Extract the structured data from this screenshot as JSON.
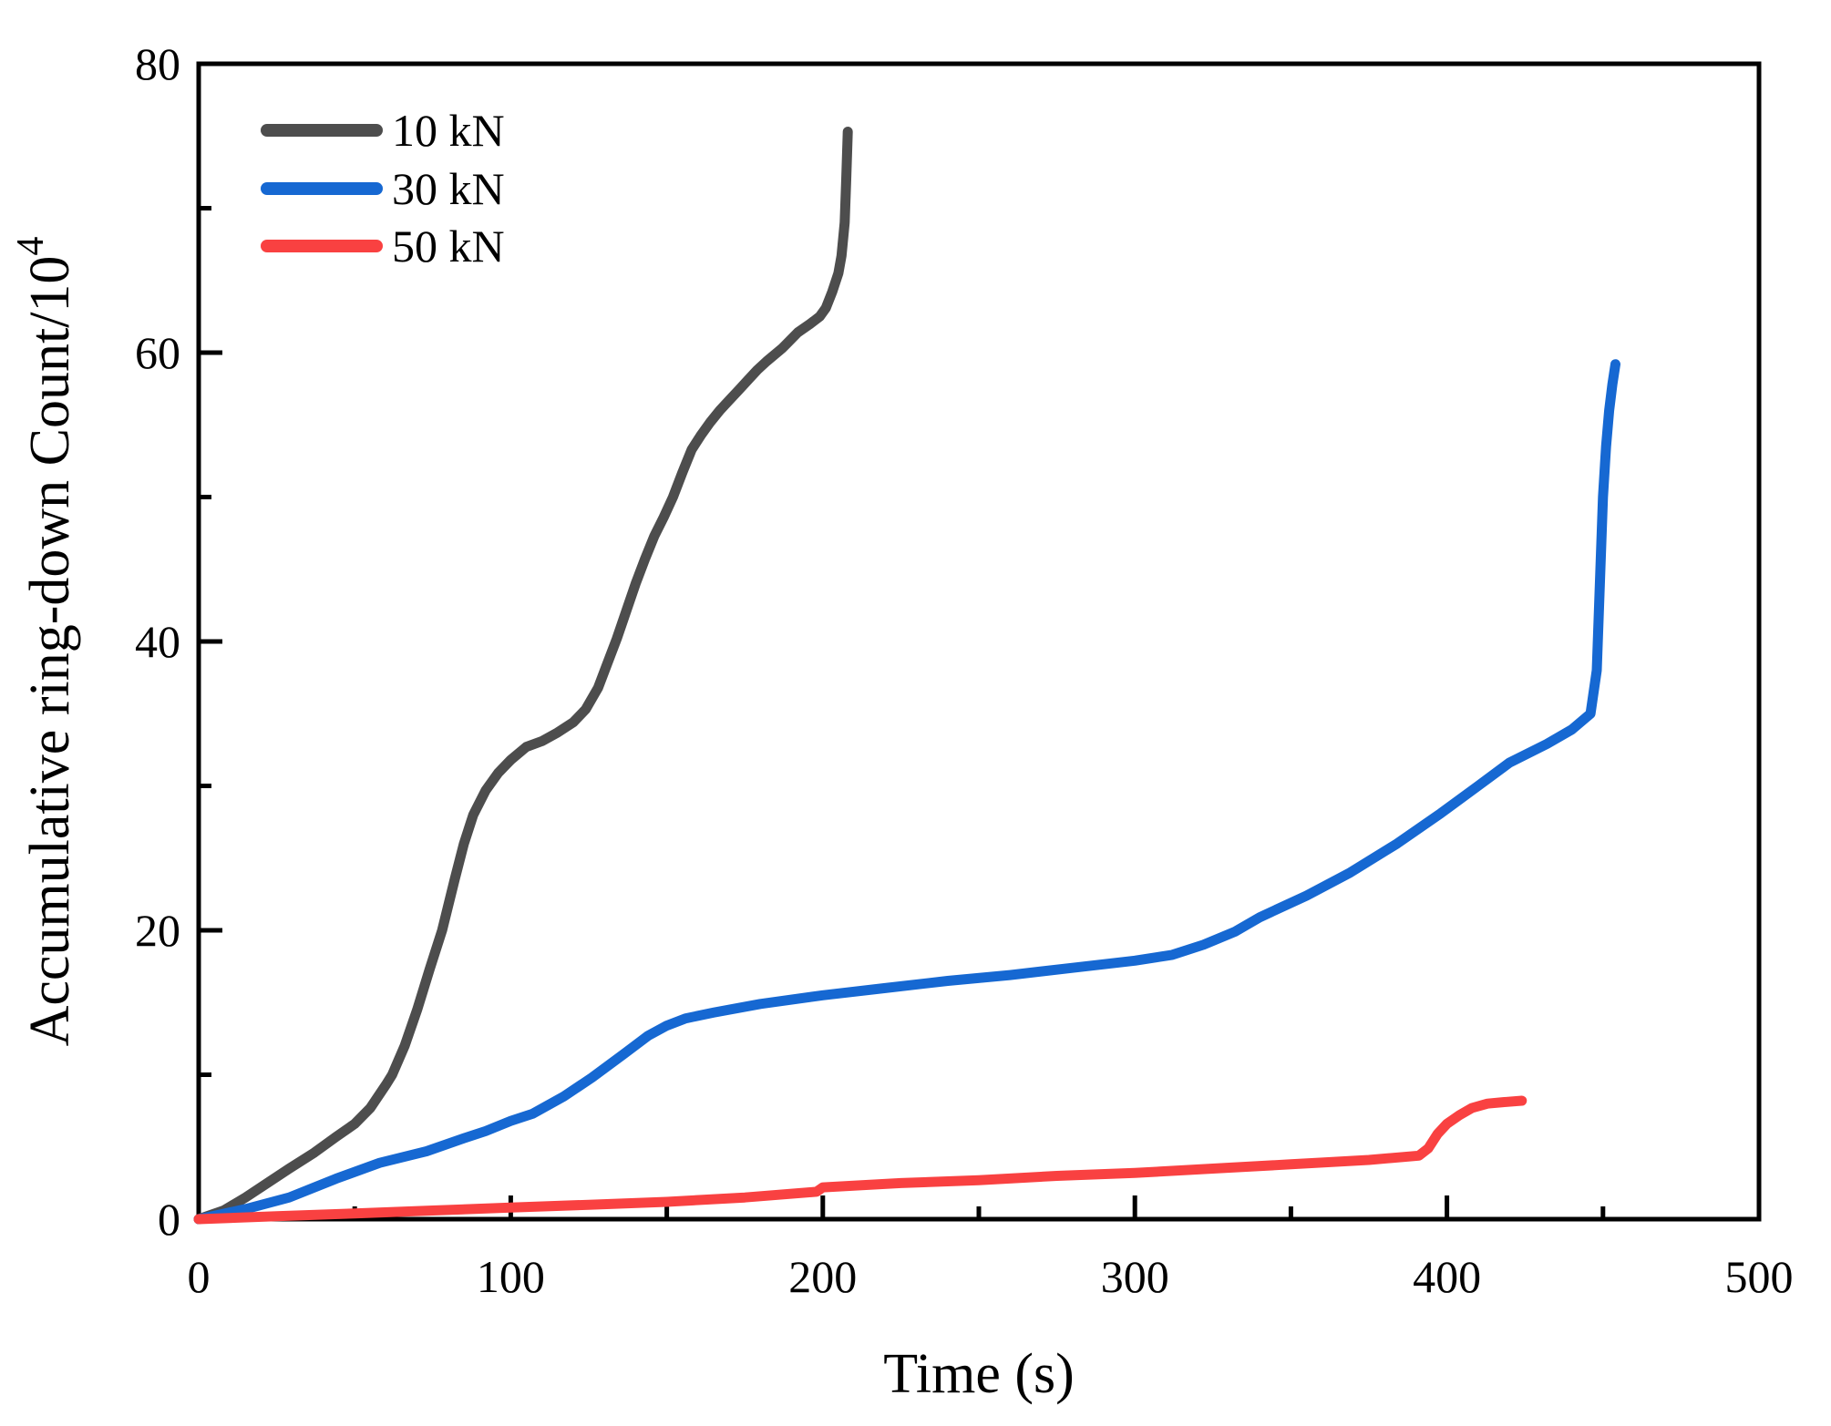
{
  "chart_data": {
    "type": "line",
    "title": "",
    "xlabel": "Time (s)",
    "ylabel_base": "Accumulative ring-down Count/10",
    "ylabel_exponent": "4",
    "xlim": [
      0,
      500
    ],
    "ylim": [
      0,
      80
    ],
    "grid": false,
    "legend_position": "top-left-inside",
    "frame": "full-box",
    "tick_direction": "in",
    "axis_color": "#000000",
    "x_axis": {
      "major_ticks": [
        0,
        100,
        200,
        300,
        400,
        500
      ],
      "tick_labels": [
        "0",
        "100",
        "200",
        "300",
        "400",
        "500"
      ],
      "minor_ticks": [
        50,
        150,
        250,
        350,
        450
      ]
    },
    "y_axis": {
      "major_ticks": [
        0,
        20,
        40,
        60,
        80
      ],
      "tick_labels": [
        "0",
        "20",
        "40",
        "60",
        "80"
      ],
      "minor_ticks": [
        10,
        30,
        50,
        70
      ]
    },
    "series": [
      {
        "name": "10 kN",
        "color": "#4d4d4d",
        "points": [
          [
            0,
            0
          ],
          [
            8,
            0.6
          ],
          [
            15,
            1.5
          ],
          [
            22,
            2.5
          ],
          [
            29,
            3.5
          ],
          [
            37,
            4.6
          ],
          [
            44,
            5.7
          ],
          [
            50,
            6.6
          ],
          [
            55,
            7.7
          ],
          [
            60,
            9.3
          ],
          [
            62,
            10
          ],
          [
            66,
            12
          ],
          [
            70,
            14.5
          ],
          [
            74,
            17.3
          ],
          [
            78,
            20
          ],
          [
            82,
            23.5
          ],
          [
            85,
            26
          ],
          [
            88,
            28
          ],
          [
            92,
            29.7
          ],
          [
            96,
            30.9
          ],
          [
            100,
            31.8
          ],
          [
            105,
            32.7
          ],
          [
            110,
            33.1
          ],
          [
            115,
            33.7
          ],
          [
            120,
            34.4
          ],
          [
            124,
            35.3
          ],
          [
            128,
            36.8
          ],
          [
            131,
            38.5
          ],
          [
            134,
            40.2
          ],
          [
            137,
            42.1
          ],
          [
            140,
            44
          ],
          [
            143,
            45.7
          ],
          [
            146,
            47.3
          ],
          [
            149,
            48.6
          ],
          [
            152,
            50
          ],
          [
            155,
            51.7
          ],
          [
            158,
            53.3
          ],
          [
            161,
            54.3
          ],
          [
            164,
            55.2
          ],
          [
            167,
            56
          ],
          [
            170,
            56.7
          ],
          [
            173,
            57.4
          ],
          [
            176,
            58.1
          ],
          [
            179,
            58.8
          ],
          [
            182,
            59.4
          ],
          [
            187,
            60.3
          ],
          [
            192,
            61.4
          ],
          [
            196,
            62
          ],
          [
            199,
            62.5
          ],
          [
            201,
            63.1
          ],
          [
            203,
            64.2
          ],
          [
            205,
            65.5
          ],
          [
            206,
            66.7
          ],
          [
            207,
            69
          ],
          [
            207.5,
            72
          ],
          [
            208,
            75.3
          ]
        ]
      },
      {
        "name": "30 kN",
        "color": "#1668d2",
        "points": [
          [
            0,
            0
          ],
          [
            15,
            0.7
          ],
          [
            29,
            1.5
          ],
          [
            44,
            2.8
          ],
          [
            58,
            3.9
          ],
          [
            73,
            4.7
          ],
          [
            85,
            5.6
          ],
          [
            92,
            6.1
          ],
          [
            100,
            6.8
          ],
          [
            107,
            7.3
          ],
          [
            117,
            8.5
          ],
          [
            126,
            9.8
          ],
          [
            136,
            11.4
          ],
          [
            144,
            12.7
          ],
          [
            150,
            13.4
          ],
          [
            156,
            13.9
          ],
          [
            165,
            14.3
          ],
          [
            180,
            14.9
          ],
          [
            200,
            15.5
          ],
          [
            220,
            16
          ],
          [
            240,
            16.5
          ],
          [
            260,
            16.9
          ],
          [
            280,
            17.4
          ],
          [
            300,
            17.9
          ],
          [
            312,
            18.3
          ],
          [
            322,
            19
          ],
          [
            332,
            19.9
          ],
          [
            340,
            20.9
          ],
          [
            355,
            22.4
          ],
          [
            369,
            24
          ],
          [
            384,
            26
          ],
          [
            398,
            28.1
          ],
          [
            410,
            30
          ],
          [
            420,
            31.6
          ],
          [
            432,
            32.9
          ],
          [
            440,
            33.9
          ],
          [
            446,
            35
          ],
          [
            448,
            38
          ],
          [
            449,
            44
          ],
          [
            450,
            50
          ],
          [
            451,
            53.5
          ],
          [
            452,
            56
          ],
          [
            453,
            57.8
          ],
          [
            454,
            59.2
          ]
        ]
      },
      {
        "name": "50 kN",
        "color": "#f94141",
        "points": [
          [
            0,
            0
          ],
          [
            25,
            0.2
          ],
          [
            50,
            0.4
          ],
          [
            75,
            0.6
          ],
          [
            100,
            0.8
          ],
          [
            125,
            1
          ],
          [
            150,
            1.2
          ],
          [
            175,
            1.5
          ],
          [
            198,
            1.9
          ],
          [
            200,
            2.2
          ],
          [
            225,
            2.5
          ],
          [
            250,
            2.7
          ],
          [
            275,
            3
          ],
          [
            300,
            3.2
          ],
          [
            325,
            3.5
          ],
          [
            350,
            3.8
          ],
          [
            375,
            4.1
          ],
          [
            391,
            4.4
          ],
          [
            394,
            4.9
          ],
          [
            397,
            5.9
          ],
          [
            400,
            6.6
          ],
          [
            404,
            7.2
          ],
          [
            408,
            7.7
          ],
          [
            413,
            8
          ],
          [
            418,
            8.1
          ],
          [
            424,
            8.2
          ]
        ]
      }
    ]
  }
}
